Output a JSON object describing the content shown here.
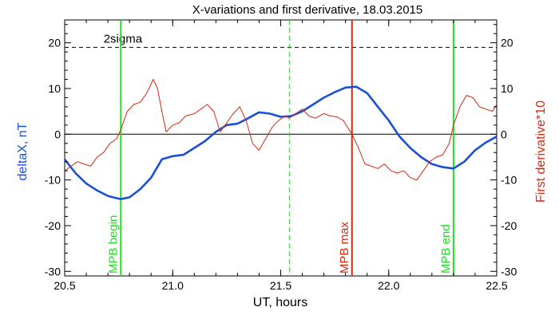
{
  "chart_data": {
    "type": "line",
    "title": "X-variations and first derivative, 18.03.2015",
    "xlabel": "UT, hours",
    "ylabel_left": "deltaX, nT",
    "ylabel_right": "First derivative*10",
    "xlim": [
      20.5,
      22.5
    ],
    "ylim": [
      -31,
      25
    ],
    "x_ticks": [
      "20.5",
      "21.0",
      "21.5",
      "22.0",
      "22.5"
    ],
    "y_ticks": [
      "20",
      "10",
      "0",
      "-10",
      "-20",
      "-30"
    ],
    "colors": {
      "deltaX": "#1a4fd8",
      "derivative": "#d42a10",
      "mpb_edges": "#22dd22",
      "mpb_max": "#d42a10",
      "zero_line": "#000000",
      "sigma_line": "#000000"
    },
    "zero_line": 0,
    "sigma_line": {
      "label": "2sigma",
      "y": 19
    },
    "vertical_markers": [
      {
        "label": "MPB begin",
        "x": 20.76,
        "style": "solid",
        "color": "#22dd22"
      },
      {
        "label": "",
        "x": 21.54,
        "style": "dashed",
        "color": "#22dd22"
      },
      {
        "label": "MPB max",
        "x": 21.83,
        "style": "solid",
        "color": "#d42a10"
      },
      {
        "label": "MPB end",
        "x": 22.3,
        "style": "solid",
        "color": "#22dd22"
      }
    ],
    "series": [
      {
        "name": "deltaX, nT",
        "color": "#1a4fd8",
        "x": [
          20.5,
          20.55,
          20.6,
          20.65,
          20.7,
          20.76,
          20.8,
          20.85,
          20.9,
          20.95,
          21.0,
          21.05,
          21.1,
          21.15,
          21.2,
          21.25,
          21.3,
          21.35,
          21.4,
          21.45,
          21.5,
          21.55,
          21.6,
          21.65,
          21.7,
          21.75,
          21.8,
          21.85,
          21.9,
          21.95,
          22.0,
          22.05,
          22.1,
          22.15,
          22.2,
          22.25,
          22.3,
          22.35,
          22.4,
          22.45,
          22.5
        ],
        "values": [
          -5.5,
          -8.5,
          -10.8,
          -12.3,
          -13.5,
          -14.2,
          -13.8,
          -12.0,
          -9.5,
          -5.5,
          -4.8,
          -4.5,
          -3.0,
          -1.5,
          0.5,
          2.0,
          2.3,
          3.5,
          4.8,
          4.5,
          3.8,
          4.0,
          5.0,
          6.5,
          8.0,
          9.2,
          10.2,
          10.4,
          9.0,
          6.0,
          3.0,
          -0.5,
          -3.0,
          -5.0,
          -6.5,
          -7.2,
          -7.5,
          -6.0,
          -3.5,
          -1.8,
          -0.5
        ]
      },
      {
        "name": "First derivative*10",
        "color": "#d42a10",
        "x": [
          20.5,
          20.53,
          20.56,
          20.59,
          20.62,
          20.65,
          20.68,
          20.71,
          20.74,
          20.76,
          20.79,
          20.82,
          20.85,
          20.88,
          20.91,
          20.93,
          20.95,
          20.97,
          21.0,
          21.03,
          21.06,
          21.1,
          21.13,
          21.16,
          21.19,
          21.22,
          21.25,
          21.28,
          21.31,
          21.34,
          21.37,
          21.4,
          21.43,
          21.46,
          21.49,
          21.52,
          21.54,
          21.57,
          21.6,
          21.63,
          21.66,
          21.7,
          21.73,
          21.76,
          21.79,
          21.83,
          21.86,
          21.89,
          21.92,
          21.95,
          21.98,
          22.01,
          22.04,
          22.07,
          22.1,
          22.13,
          22.16,
          22.19,
          22.22,
          22.25,
          22.28,
          22.3,
          22.33,
          22.36,
          22.39,
          22.42,
          22.45,
          22.48,
          22.5
        ],
        "values": [
          -8.0,
          -7.0,
          -6.0,
          -6.5,
          -7.0,
          -5.0,
          -4.0,
          -2.0,
          -1.0,
          1.0,
          5.0,
          6.5,
          7.0,
          9.0,
          12.0,
          10.0,
          5.0,
          0.5,
          2.0,
          2.5,
          4.0,
          4.5,
          5.5,
          6.5,
          5.0,
          0.5,
          2.5,
          4.5,
          6.0,
          3.0,
          -2.0,
          -3.5,
          -1.0,
          1.5,
          3.0,
          4.0,
          3.5,
          4.5,
          5.5,
          4.0,
          3.5,
          4.5,
          4.0,
          3.8,
          3.0,
          0.0,
          -3.0,
          -6.5,
          -7.0,
          -7.5,
          -6.5,
          -8.0,
          -8.5,
          -8.0,
          -9.5,
          -10.0,
          -8.0,
          -6.0,
          -5.0,
          -4.5,
          -2.0,
          2.0,
          6.0,
          8.5,
          8.0,
          6.0,
          5.5,
          5.0,
          6.5
        ]
      }
    ]
  }
}
